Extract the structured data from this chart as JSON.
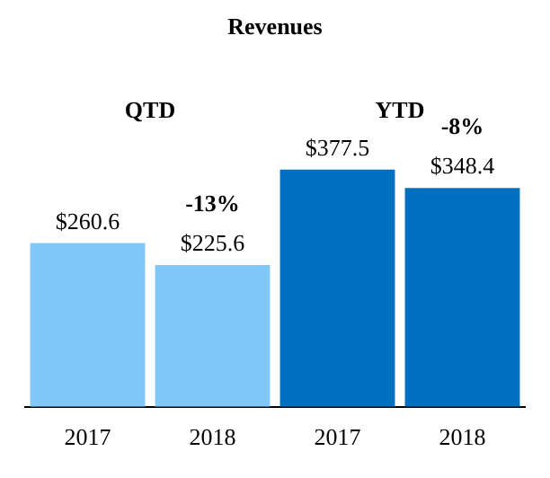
{
  "chart_data": {
    "type": "bar",
    "title": "Revenues",
    "categories": [
      "2017",
      "2018",
      "2017",
      "2018"
    ],
    "values": [
      260.6,
      225.6,
      377.5,
      348.4
    ],
    "colors": [
      "#7fc8f8",
      "#7fc8f8",
      "#0070c0",
      "#0070c0"
    ],
    "value_labels": [
      "$260.6",
      "$225.6",
      "$377.5",
      "$348.4"
    ],
    "annotations": [
      "QTD",
      "YTD",
      "-13%",
      "-8%"
    ],
    "tick_labels": "x",
    "legend": false
  }
}
